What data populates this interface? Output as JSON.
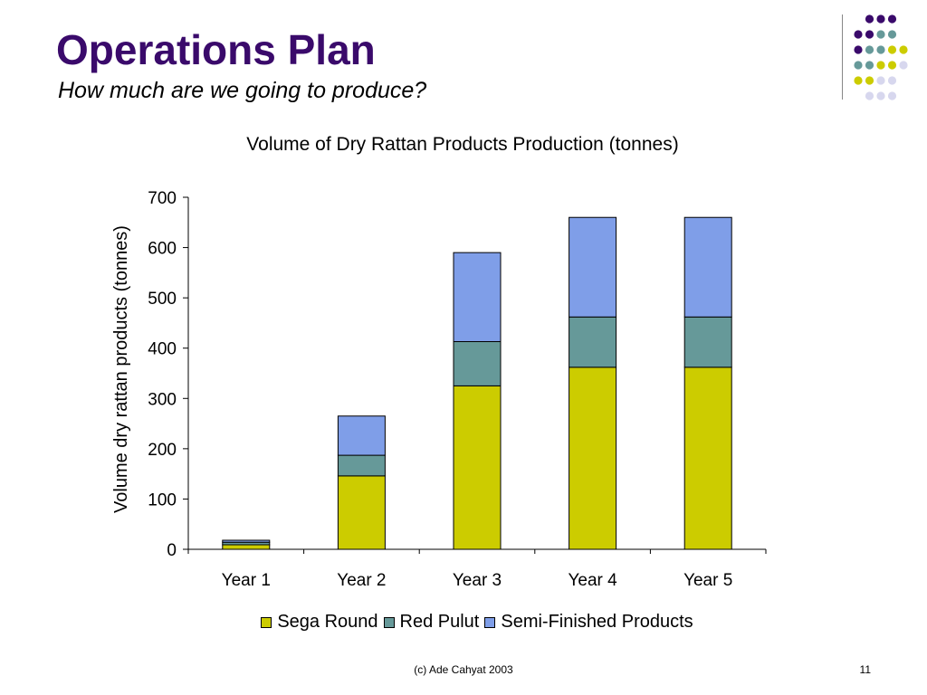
{
  "slide": {
    "title": "Operations Plan",
    "subtitle": "How much are we going to produce?",
    "footer": "(c) Ade Cahyat 2003",
    "page_number": "11"
  },
  "colors": {
    "title": "#3a0a6b",
    "sega_round": "#cccc00",
    "red_pulut": "#669999",
    "semi_finished": "#7f9ee8",
    "deco_purple": "#3a0a6b",
    "deco_teal": "#669999",
    "deco_yellow": "#cccc00",
    "deco_lavender": "#d7d7ee"
  },
  "decoration": {
    "dot_grid_colors": [
      [
        null,
        "deco_purple",
        "deco_purple",
        "deco_purple",
        null
      ],
      [
        "deco_purple",
        "deco_purple",
        "deco_teal",
        "deco_teal",
        null
      ],
      [
        "deco_purple",
        "deco_teal",
        "deco_teal",
        "deco_yellow",
        "deco_yellow"
      ],
      [
        "deco_teal",
        "deco_teal",
        "deco_yellow",
        "deco_yellow",
        "deco_lavender"
      ],
      [
        "deco_yellow",
        "deco_yellow",
        "deco_lavender",
        "deco_lavender",
        null
      ],
      [
        null,
        "deco_lavender",
        "deco_lavender",
        "deco_lavender",
        null
      ]
    ]
  },
  "chart_data": {
    "type": "bar",
    "stacked": true,
    "title": "Volume of Dry Rattan Products Production (tonnes)",
    "xlabel": "",
    "ylabel": "Volume dry rattan products (tonnes)",
    "ylim": [
      0,
      700
    ],
    "yticks": [
      0,
      100,
      200,
      300,
      400,
      500,
      600,
      700
    ],
    "categories": [
      "Year 1",
      "Year 2",
      "Year 3",
      "Year 4",
      "Year 5"
    ],
    "series": [
      {
        "name": "Sega Round",
        "color": "#cccc00",
        "values": [
          9,
          146,
          325,
          362,
          362
        ]
      },
      {
        "name": "Red Pulut",
        "color": "#669999",
        "values": [
          5,
          41,
          88,
          100,
          100
        ]
      },
      {
        "name": "Semi-Finished Products",
        "color": "#7f9ee8",
        "values": [
          4,
          78,
          177,
          198,
          198
        ]
      }
    ],
    "legend_position": "bottom",
    "grid": false
  }
}
